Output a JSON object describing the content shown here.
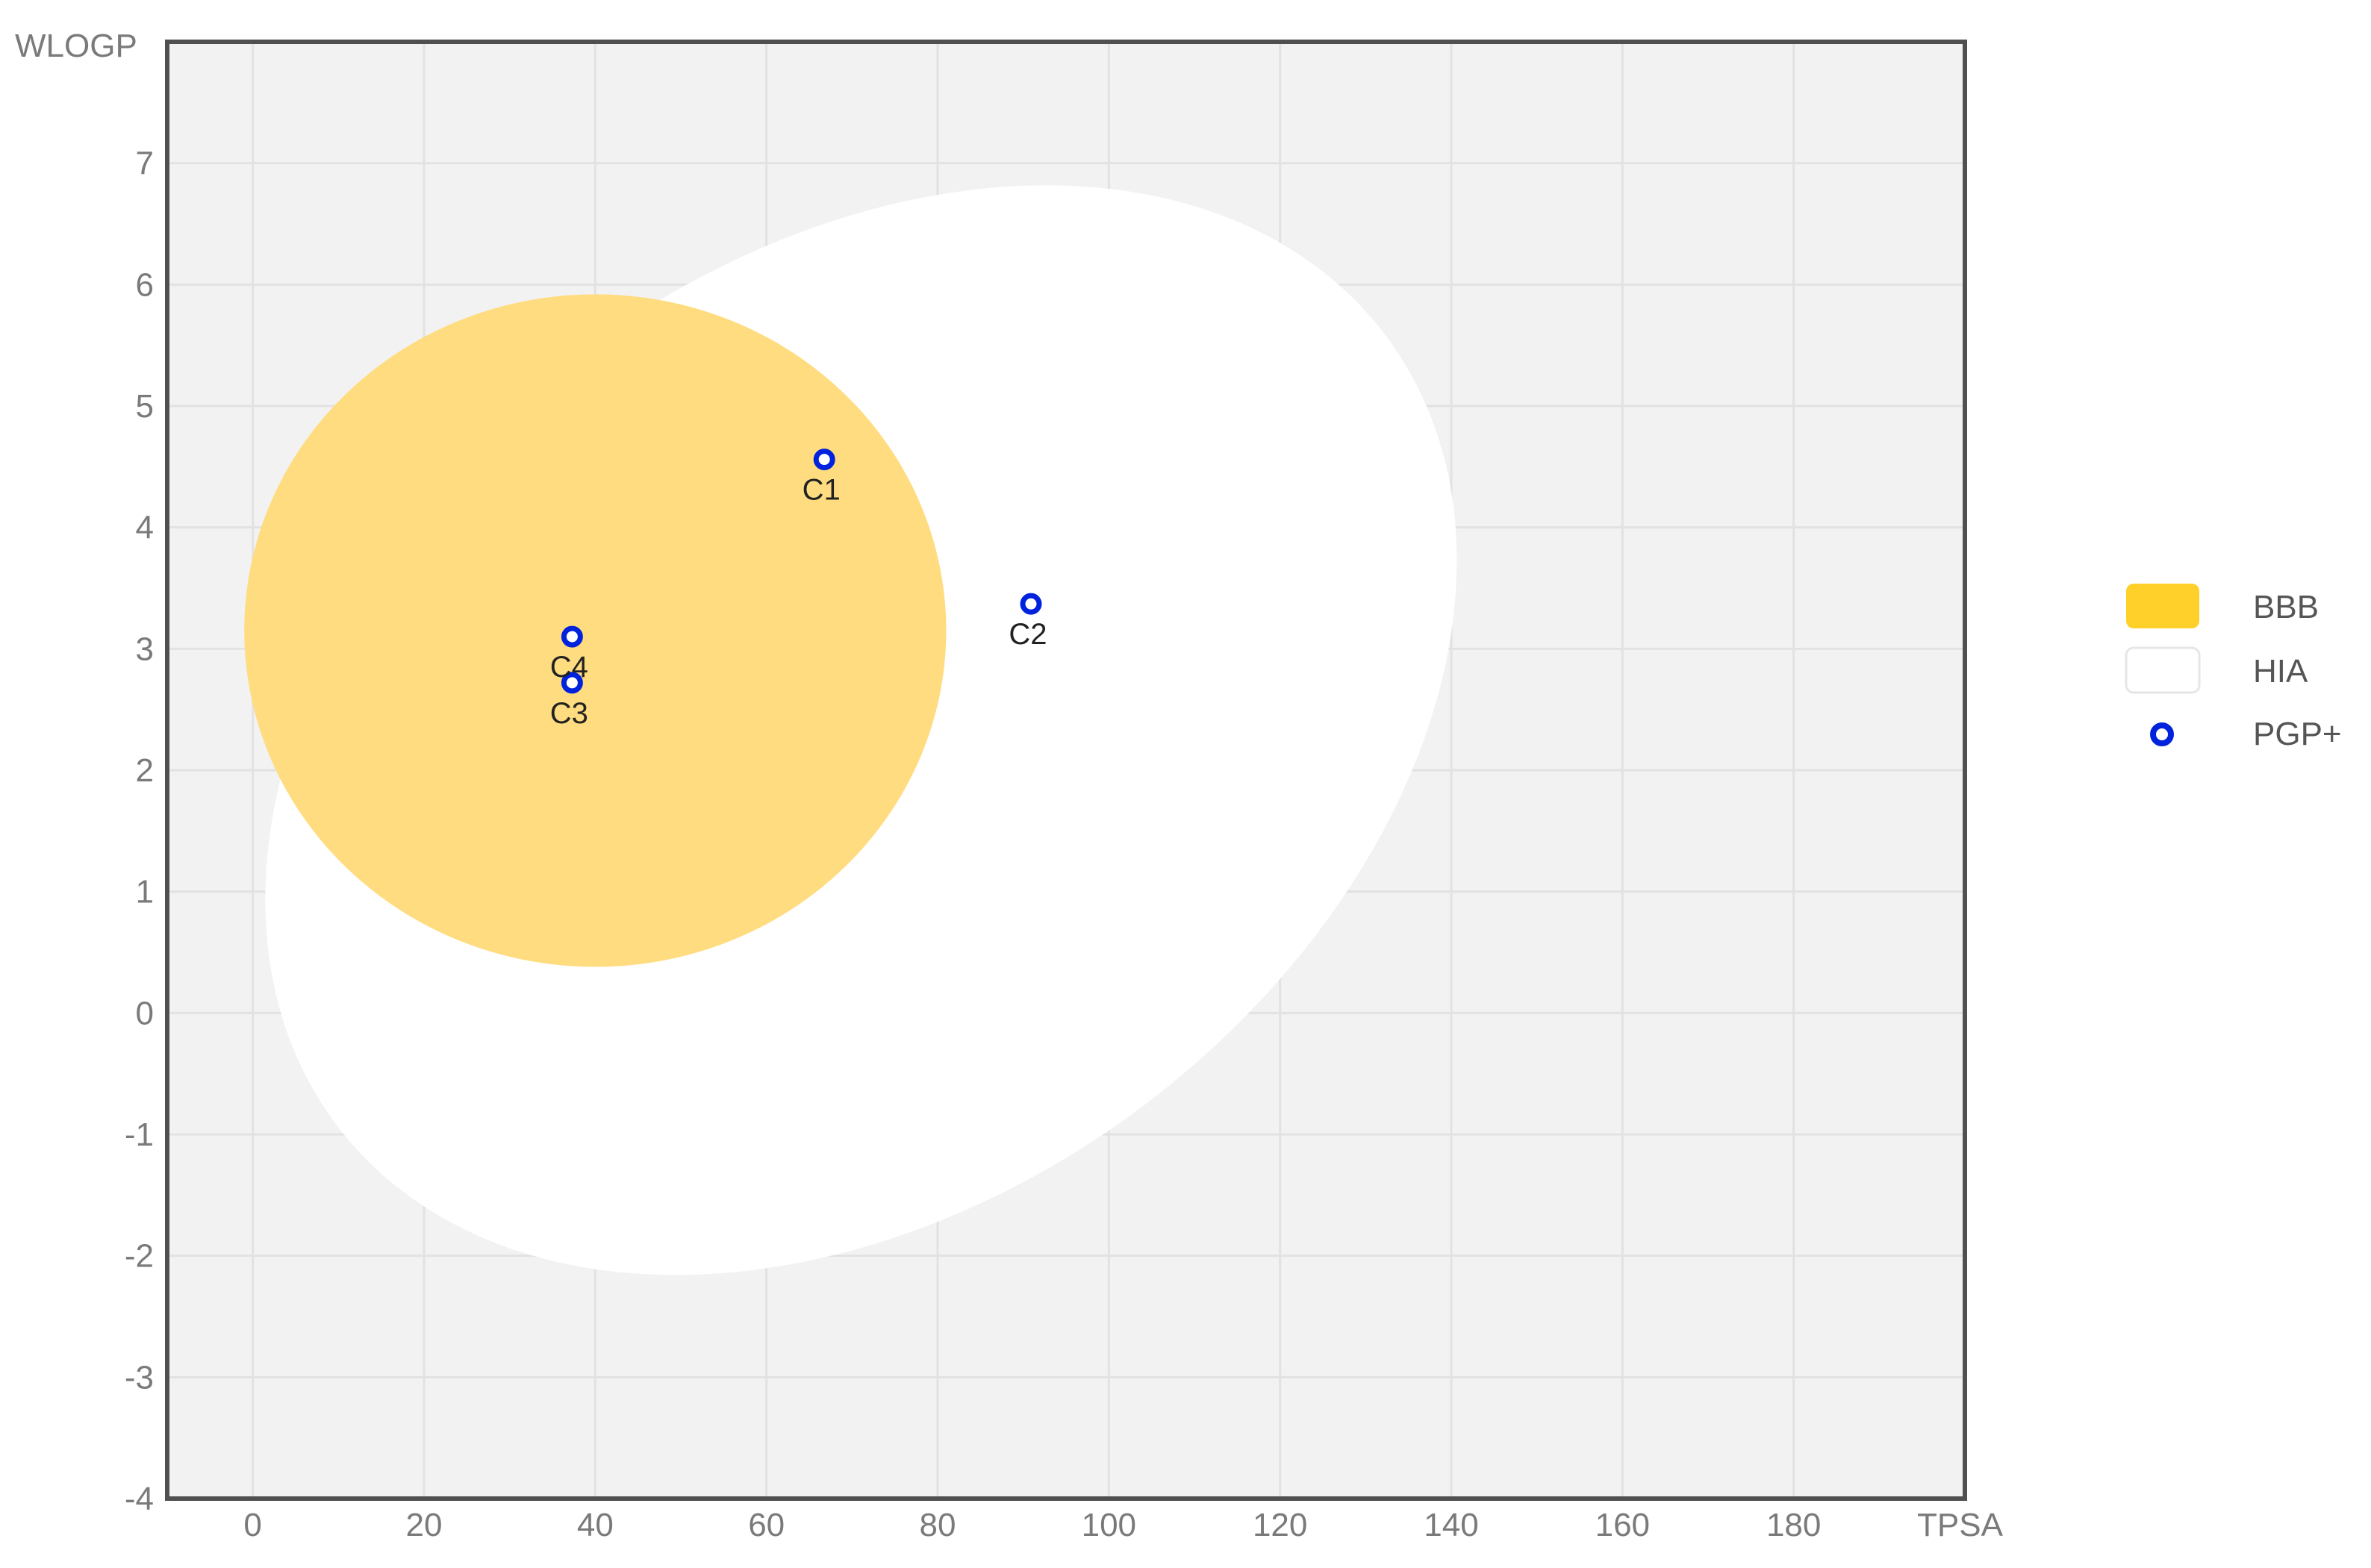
{
  "chart_data": {
    "type": "scatter",
    "title": "",
    "xlabel": "TPSA",
    "ylabel": "WLOGP",
    "xlim": [
      -10,
      200
    ],
    "ylim": [
      -4,
      8
    ],
    "x_ticks": [
      0,
      20,
      40,
      60,
      80,
      100,
      120,
      140,
      160,
      180
    ],
    "y_ticks": [
      -4,
      -3,
      -2,
      -1,
      0,
      1,
      2,
      3,
      4,
      5,
      6,
      7
    ],
    "grid": true,
    "legend_position": "right",
    "regions": [
      {
        "name": "BBB",
        "color": "#FFD02A",
        "fill_color": "#FFDC7F",
        "shape": "ellipse",
        "center": [
          40.0,
          3.15
        ],
        "radii": [
          41.0,
          2.77
        ],
        "rotation_deg": 0
      },
      {
        "name": "HIA",
        "color": "#FFFFFF",
        "shape": "ellipse",
        "center": [
          71.05,
          2.33
        ],
        "radii": [
          76.7,
          3.87
        ],
        "rotation_deg": -37
      }
    ],
    "series": [
      {
        "name": "PGP+",
        "marker": "circle-open",
        "color": "#0022DD",
        "points": [
          {
            "label": "C1",
            "x": 66.76,
            "y": 4.56
          },
          {
            "label": "C2",
            "x": 90.9,
            "y": 3.37
          },
          {
            "label": "C3",
            "x": 37.3,
            "y": 2.72
          },
          {
            "label": "C4",
            "x": 37.3,
            "y": 3.1
          }
        ]
      }
    ],
    "colors": {
      "plot_background": "#F2F2F2",
      "grid": "#E2E2E2",
      "frame": "#505050"
    }
  }
}
